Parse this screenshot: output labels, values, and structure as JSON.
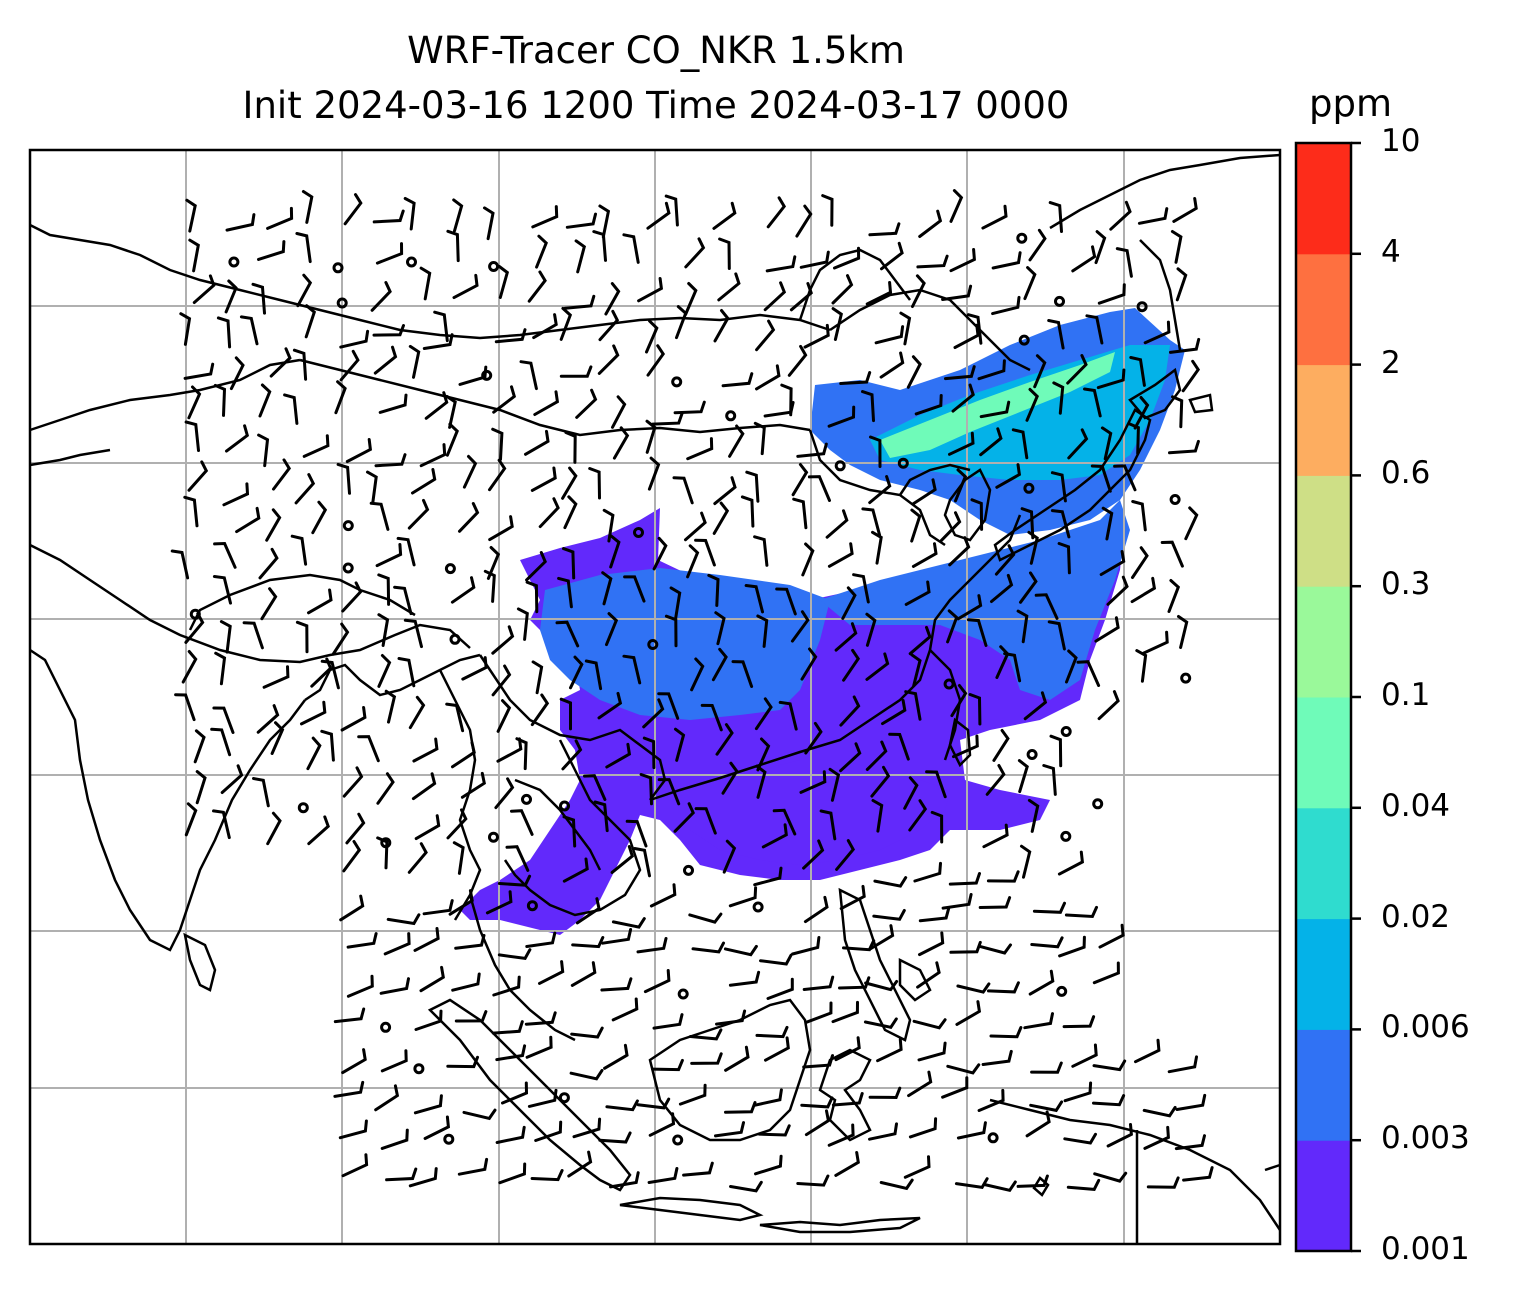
{
  "title_line1": "WRF-Tracer CO_NKR 1.5km",
  "title_line2": "Init 2024-03-16 1200 Time 2024-03-17 0000",
  "colorbar": {
    "unit": "ppm",
    "levels": [
      "0.001",
      "0.003",
      "0.006",
      "0.02",
      "0.04",
      "0.1",
      "0.3",
      "0.6",
      "2",
      "4",
      "10"
    ],
    "colors": [
      "#6229fb",
      "#3072f4",
      "#04b2e8",
      "#2fdccf",
      "#6ffbb9",
      "#9af99a",
      "#cedf86",
      "#fdad60",
      "#fe7040",
      "#fd2c1a"
    ]
  },
  "map": {
    "fill_colors": {
      "level1": "#6229fb",
      "level2": "#3072f4",
      "level3": "#04b2e8",
      "level5": "#6ffbb9"
    },
    "gridline_color": "#b0b0b0",
    "coastline_color": "#000000"
  }
}
